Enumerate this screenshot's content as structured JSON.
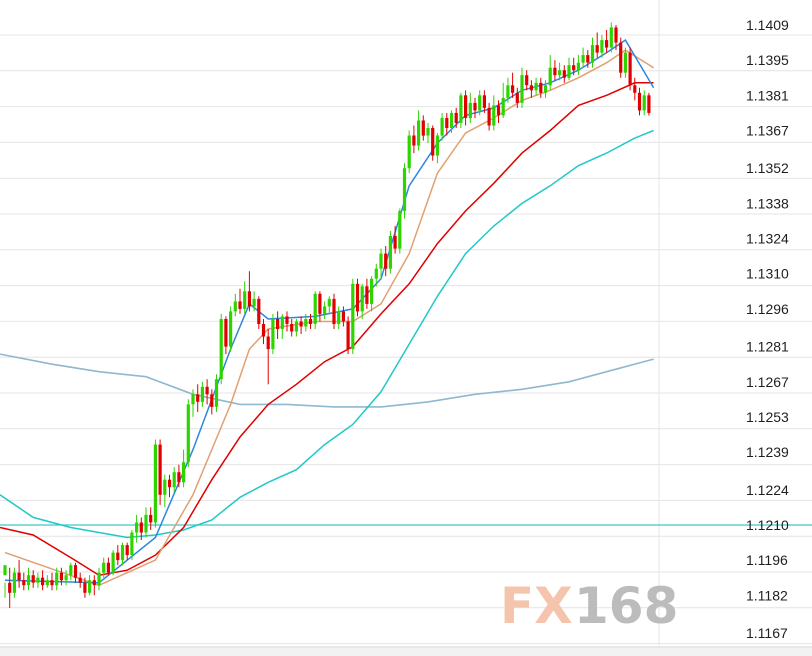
{
  "chart_data": {
    "type": "candlestick",
    "title": "",
    "xlabel": "",
    "ylabel": "",
    "ylim": [
      1.116,
      1.1416
    ],
    "grid": true,
    "y_ticks": [
      "1.1409",
      "1.1395",
      "1.1381",
      "1.1367",
      "1.1352",
      "1.1338",
      "1.1324",
      "1.1310",
      "1.1296",
      "1.1281",
      "1.1267",
      "1.1253",
      "1.1239",
      "1.1224",
      "1.1210",
      "1.1196",
      "1.1182",
      "1.1167"
    ],
    "horizontal_line": 1.121,
    "colors": {
      "up": "#2dd400",
      "down": "#e00000",
      "ma_fast": "#2e86de",
      "ma_mid": "#e0a070",
      "ma_slow": "#e00000",
      "ma_long": "#20c8c8",
      "ma_very_long": "#8fb8d0",
      "hline": "#40c8c8",
      "grid": "#e4e4e4"
    },
    "candles": [
      [
        1.119,
        1.1194,
        1.1187,
        1.1181
      ],
      [
        1.1187,
        1.1183,
        1.1193,
        1.1177
      ],
      [
        1.1183,
        1.1191,
        1.1193,
        1.1181
      ],
      [
        1.1191,
        1.1188,
        1.1196,
        1.1185
      ],
      [
        1.1188,
        1.1186,
        1.1191,
        1.1184
      ],
      [
        1.1186,
        1.119,
        1.1193,
        1.1184
      ],
      [
        1.119,
        1.1187,
        1.1192,
        1.1185
      ],
      [
        1.1187,
        1.1189,
        1.1191,
        1.1185
      ],
      [
        1.1189,
        1.1186,
        1.1192,
        1.1184
      ],
      [
        1.1186,
        1.1188,
        1.119,
        1.1185
      ],
      [
        1.1188,
        1.1186,
        1.1191,
        1.1184
      ],
      [
        1.1186,
        1.1191,
        1.1193,
        1.1184
      ],
      [
        1.1191,
        1.1188,
        1.1193,
        1.1186
      ],
      [
        1.1188,
        1.119,
        1.1192,
        1.1186
      ],
      [
        1.119,
        1.1194,
        1.1195,
        1.1188
      ],
      [
        1.1194,
        1.1189,
        1.1195,
        1.1187
      ],
      [
        1.1189,
        1.1187,
        1.1191,
        1.1185
      ],
      [
        1.1187,
        1.1183,
        1.1189,
        1.1181
      ],
      [
        1.1183,
        1.1188,
        1.119,
        1.1182
      ],
      [
        1.1188,
        1.1186,
        1.119,
        1.1182
      ],
      [
        1.1186,
        1.1191,
        1.1193,
        1.1184
      ],
      [
        1.1191,
        1.1195,
        1.1197,
        1.1189
      ],
      [
        1.1195,
        1.1191,
        1.1197,
        1.119
      ],
      [
        1.1191,
        1.1199,
        1.12,
        1.119
      ],
      [
        1.1199,
        1.1196,
        1.1202,
        1.1194
      ],
      [
        1.1196,
        1.1202,
        1.1203,
        1.1194
      ],
      [
        1.1202,
        1.1198,
        1.1203,
        1.1196
      ],
      [
        1.1198,
        1.1207,
        1.1208,
        1.1196
      ],
      [
        1.1207,
        1.1211,
        1.1214,
        1.1203
      ],
      [
        1.1211,
        1.1207,
        1.1213,
        1.1204
      ],
      [
        1.1207,
        1.1214,
        1.1217,
        1.1205
      ],
      [
        1.1214,
        1.1211,
        1.1217,
        1.1208
      ],
      [
        1.1211,
        1.1242,
        1.1244,
        1.1209
      ],
      [
        1.1242,
        1.1222,
        1.1244,
        1.1218
      ],
      [
        1.1222,
        1.1228,
        1.123,
        1.1217
      ],
      [
        1.1228,
        1.1225,
        1.123,
        1.1221
      ],
      [
        1.1225,
        1.1231,
        1.1233,
        1.1223
      ],
      [
        1.1231,
        1.1227,
        1.1234,
        1.1225
      ],
      [
        1.1227,
        1.1235,
        1.124,
        1.1225
      ],
      [
        1.1235,
        1.1258,
        1.126,
        1.1233
      ],
      [
        1.1258,
        1.1262,
        1.1264,
        1.1253
      ],
      [
        1.1262,
        1.1259,
        1.1266,
        1.1255
      ],
      [
        1.1259,
        1.1265,
        1.1267,
        1.1257
      ],
      [
        1.1265,
        1.1262,
        1.1268,
        1.1258
      ],
      [
        1.1262,
        1.1257,
        1.1264,
        1.1254
      ],
      [
        1.1257,
        1.1268,
        1.127,
        1.1255
      ],
      [
        1.1268,
        1.1292,
        1.1294,
        1.1266
      ],
      [
        1.1292,
        1.1281,
        1.1293,
        1.1278
      ],
      [
        1.1281,
        1.1295,
        1.1297,
        1.1279
      ],
      [
        1.1295,
        1.1299,
        1.1302,
        1.1293
      ],
      [
        1.1299,
        1.1296,
        1.1304,
        1.1294
      ],
      [
        1.1296,
        1.1303,
        1.1307,
        1.1294
      ],
      [
        1.1303,
        1.1297,
        1.1311,
        1.1295
      ],
      [
        1.1297,
        1.13,
        1.1303,
        1.1295
      ],
      [
        1.13,
        1.129,
        1.1301,
        1.1288
      ],
      [
        1.129,
        1.1285,
        1.1292,
        1.1282
      ],
      [
        1.1285,
        1.128,
        1.1288,
        1.1266
      ],
      [
        1.128,
        1.1292,
        1.1294,
        1.1278
      ],
      [
        1.1292,
        1.1288,
        1.1295,
        1.1284
      ],
      [
        1.1288,
        1.1293,
        1.1294,
        1.1284
      ],
      [
        1.1293,
        1.129,
        1.1295,
        1.1287
      ],
      [
        1.129,
        1.1287,
        1.1292,
        1.1285
      ],
      [
        1.1287,
        1.1291,
        1.1292,
        1.1285
      ],
      [
        1.1291,
        1.1289,
        1.1293,
        1.1286
      ],
      [
        1.1289,
        1.1292,
        1.1294,
        1.1287
      ],
      [
        1.1292,
        1.129,
        1.1294,
        1.1288
      ],
      [
        1.129,
        1.1302,
        1.1303,
        1.1288
      ],
      [
        1.1302,
        1.1294,
        1.1303,
        1.1291
      ],
      [
        1.1294,
        1.1297,
        1.1299,
        1.1292
      ],
      [
        1.1297,
        1.13,
        1.1301,
        1.1294
      ],
      [
        1.13,
        1.129,
        1.1302,
        1.1288
      ],
      [
        1.129,
        1.1295,
        1.1297,
        1.1288
      ],
      [
        1.1295,
        1.1291,
        1.1297,
        1.1289
      ],
      [
        1.1291,
        1.128,
        1.1293,
        1.1278
      ],
      [
        1.128,
        1.1306,
        1.1308,
        1.1278
      ],
      [
        1.1306,
        1.1295,
        1.1308,
        1.1293
      ],
      [
        1.1295,
        1.1305,
        1.1306,
        1.1292
      ],
      [
        1.1305,
        1.1298,
        1.1308,
        1.1296
      ],
      [
        1.1298,
        1.1308,
        1.1309,
        1.1295
      ],
      [
        1.1308,
        1.1312,
        1.1314,
        1.1305
      ],
      [
        1.1312,
        1.1318,
        1.132,
        1.1308
      ],
      [
        1.1318,
        1.1312,
        1.1321,
        1.1309
      ],
      [
        1.1312,
        1.1325,
        1.1327,
        1.131
      ],
      [
        1.1325,
        1.132,
        1.1329,
        1.1318
      ],
      [
        1.132,
        1.1335,
        1.1336,
        1.1318
      ],
      [
        1.1335,
        1.1352,
        1.1354,
        1.1332
      ],
      [
        1.1352,
        1.1365,
        1.1367,
        1.135
      ],
      [
        1.1365,
        1.1361,
        1.1369,
        1.1358
      ],
      [
        1.1361,
        1.1371,
        1.1375,
        1.1359
      ],
      [
        1.1371,
        1.1365,
        1.1373,
        1.1363
      ],
      [
        1.1365,
        1.1368,
        1.137,
        1.1362
      ],
      [
        1.1368,
        1.1357,
        1.1369,
        1.1355
      ],
      [
        1.1357,
        1.1365,
        1.1366,
        1.1354
      ],
      [
        1.1365,
        1.1372,
        1.1374,
        1.1363
      ],
      [
        1.1372,
        1.1368,
        1.1374,
        1.1365
      ],
      [
        1.1368,
        1.1374,
        1.1375,
        1.1366
      ],
      [
        1.1374,
        1.137,
        1.1376,
        1.1368
      ],
      [
        1.137,
        1.1381,
        1.1382,
        1.1368
      ],
      [
        1.1381,
        1.1372,
        1.1383,
        1.1369
      ],
      [
        1.1372,
        1.1378,
        1.1382,
        1.137
      ],
      [
        1.1378,
        1.1375,
        1.138,
        1.1372
      ],
      [
        1.1375,
        1.1381,
        1.1383,
        1.1373
      ],
      [
        1.1381,
        1.1376,
        1.1383,
        1.1374
      ],
      [
        1.1376,
        1.1369,
        1.1378,
        1.1367
      ],
      [
        1.1369,
        1.1377,
        1.1381,
        1.1367
      ],
      [
        1.1377,
        1.1373,
        1.1379,
        1.137
      ],
      [
        1.1373,
        1.138,
        1.1386,
        1.1372
      ],
      [
        1.138,
        1.1385,
        1.1388,
        1.1378
      ],
      [
        1.1385,
        1.1382,
        1.139,
        1.138
      ],
      [
        1.1382,
        1.1378,
        1.1384,
        1.1376
      ],
      [
        1.1378,
        1.1389,
        1.1392,
        1.1376
      ],
      [
        1.1389,
        1.1385,
        1.1391,
        1.1383
      ],
      [
        1.1385,
        1.1383,
        1.1387,
        1.138
      ],
      [
        1.1383,
        1.1386,
        1.1388,
        1.1381
      ],
      [
        1.1386,
        1.1382,
        1.1388,
        1.138
      ],
      [
        1.1382,
        1.1385,
        1.1387,
        1.138
      ],
      [
        1.1385,
        1.1392,
        1.1397,
        1.1383
      ],
      [
        1.1392,
        1.1389,
        1.1395,
        1.1387
      ],
      [
        1.1389,
        1.1391,
        1.1394,
        1.1387
      ],
      [
        1.1391,
        1.1388,
        1.1393,
        1.1386
      ],
      [
        1.1388,
        1.1393,
        1.1396,
        1.1387
      ],
      [
        1.1393,
        1.1391,
        1.1396,
        1.1389
      ],
      [
        1.1391,
        1.1394,
        1.1397,
        1.1389
      ],
      [
        1.1394,
        1.1397,
        1.14,
        1.1392
      ],
      [
        1.1397,
        1.1394,
        1.1399,
        1.1392
      ],
      [
        1.1394,
        1.1401,
        1.1404,
        1.1392
      ],
      [
        1.1401,
        1.1398,
        1.1406,
        1.1396
      ],
      [
        1.1398,
        1.1403,
        1.1405,
        1.1396
      ],
      [
        1.1403,
        1.14,
        1.1407,
        1.1398
      ],
      [
        1.14,
        1.1408,
        1.141,
        1.1398
      ],
      [
        1.1408,
        1.1402,
        1.1409,
        1.1399
      ],
      [
        1.1402,
        1.139,
        1.1404,
        1.1388
      ],
      [
        1.139,
        1.1398,
        1.14,
        1.1388
      ],
      [
        1.1398,
        1.1385,
        1.14,
        1.1383
      ],
      [
        1.1385,
        1.1382,
        1.1388,
        1.1379
      ],
      [
        1.1382,
        1.1375,
        1.1384,
        1.1373
      ],
      [
        1.1375,
        1.1381,
        1.1383,
        1.1373
      ],
      [
        1.1381,
        1.1374,
        1.1382,
        1.1373
      ]
    ],
    "series": [
      {
        "values": [
          [
            0,
            1.1188
          ],
          [
            20,
            1.1187
          ],
          [
            32,
            1.1205
          ],
          [
            40,
            1.124
          ],
          [
            48,
            1.128
          ],
          [
            52,
            1.1298
          ],
          [
            56,
            1.1292
          ],
          [
            66,
            1.1293
          ],
          [
            74,
            1.1296
          ],
          [
            80,
            1.1308
          ],
          [
            86,
            1.1345
          ],
          [
            92,
            1.1362
          ],
          [
            98,
            1.1373
          ],
          [
            104,
            1.1376
          ],
          [
            110,
            1.1383
          ],
          [
            116,
            1.1386
          ],
          [
            122,
            1.1391
          ],
          [
            128,
            1.1398
          ],
          [
            132,
            1.1403
          ],
          [
            138,
            1.1384
          ]
        ]
      },
      {
        "values": [
          [
            0,
            1.1199
          ],
          [
            20,
            1.1186
          ],
          [
            32,
            1.1196
          ],
          [
            40,
            1.1222
          ],
          [
            48,
            1.1258
          ],
          [
            52,
            1.128
          ],
          [
            56,
            1.1288
          ],
          [
            66,
            1.1291
          ],
          [
            74,
            1.1291
          ],
          [
            80,
            1.1298
          ],
          [
            86,
            1.1318
          ],
          [
            92,
            1.135
          ],
          [
            98,
            1.1366
          ],
          [
            104,
            1.1372
          ],
          [
            110,
            1.1379
          ],
          [
            116,
            1.1383
          ],
          [
            122,
            1.1388
          ],
          [
            128,
            1.1394
          ],
          [
            132,
            1.1399
          ],
          [
            138,
            1.1392
          ]
        ]
      },
      {
        "values": [
          [
            0,
            1.1209
          ],
          [
            6,
            1.1206
          ],
          [
            14,
            1.1197
          ],
          [
            20,
            1.119
          ],
          [
            26,
            1.1192
          ],
          [
            32,
            1.1198
          ],
          [
            38,
            1.1209
          ],
          [
            44,
            1.1228
          ],
          [
            50,
            1.1245
          ],
          [
            56,
            1.1258
          ],
          [
            62,
            1.1266
          ],
          [
            68,
            1.1275
          ],
          [
            74,
            1.1281
          ],
          [
            80,
            1.1294
          ],
          [
            86,
            1.1306
          ],
          [
            92,
            1.1322
          ],
          [
            98,
            1.1335
          ],
          [
            104,
            1.1346
          ],
          [
            110,
            1.1358
          ],
          [
            116,
            1.1367
          ],
          [
            122,
            1.1377
          ],
          [
            128,
            1.1381
          ],
          [
            134,
            1.1386
          ],
          [
            138,
            1.1386
          ]
        ]
      },
      {
        "values": [
          [
            0,
            1.1222
          ],
          [
            6,
            1.1213
          ],
          [
            14,
            1.1209
          ],
          [
            20,
            1.1207
          ],
          [
            26,
            1.1205
          ],
          [
            32,
            1.1206
          ],
          [
            38,
            1.1208
          ],
          [
            44,
            1.1212
          ],
          [
            50,
            1.1221
          ],
          [
            56,
            1.1227
          ],
          [
            62,
            1.1232
          ],
          [
            68,
            1.1242
          ],
          [
            74,
            1.125
          ],
          [
            80,
            1.1263
          ],
          [
            86,
            1.1282
          ],
          [
            92,
            1.1301
          ],
          [
            98,
            1.1318
          ],
          [
            104,
            1.1329
          ],
          [
            110,
            1.1338
          ],
          [
            116,
            1.1345
          ],
          [
            122,
            1.1353
          ],
          [
            128,
            1.1358
          ],
          [
            134,
            1.1364
          ],
          [
            138,
            1.1367
          ]
        ]
      },
      {
        "values": [
          [
            0,
            1.1278
          ],
          [
            10,
            1.1274
          ],
          [
            20,
            1.1271
          ],
          [
            30,
            1.1269
          ],
          [
            40,
            1.1262
          ],
          [
            50,
            1.1258
          ],
          [
            60,
            1.1258
          ],
          [
            70,
            1.1257
          ],
          [
            80,
            1.1257
          ],
          [
            90,
            1.1259
          ],
          [
            100,
            1.1262
          ],
          [
            110,
            1.1264
          ],
          [
            120,
            1.1267
          ],
          [
            130,
            1.1272
          ],
          [
            138,
            1.1276
          ]
        ]
      }
    ]
  },
  "watermark": {
    "left": "FX",
    "right": "168"
  }
}
